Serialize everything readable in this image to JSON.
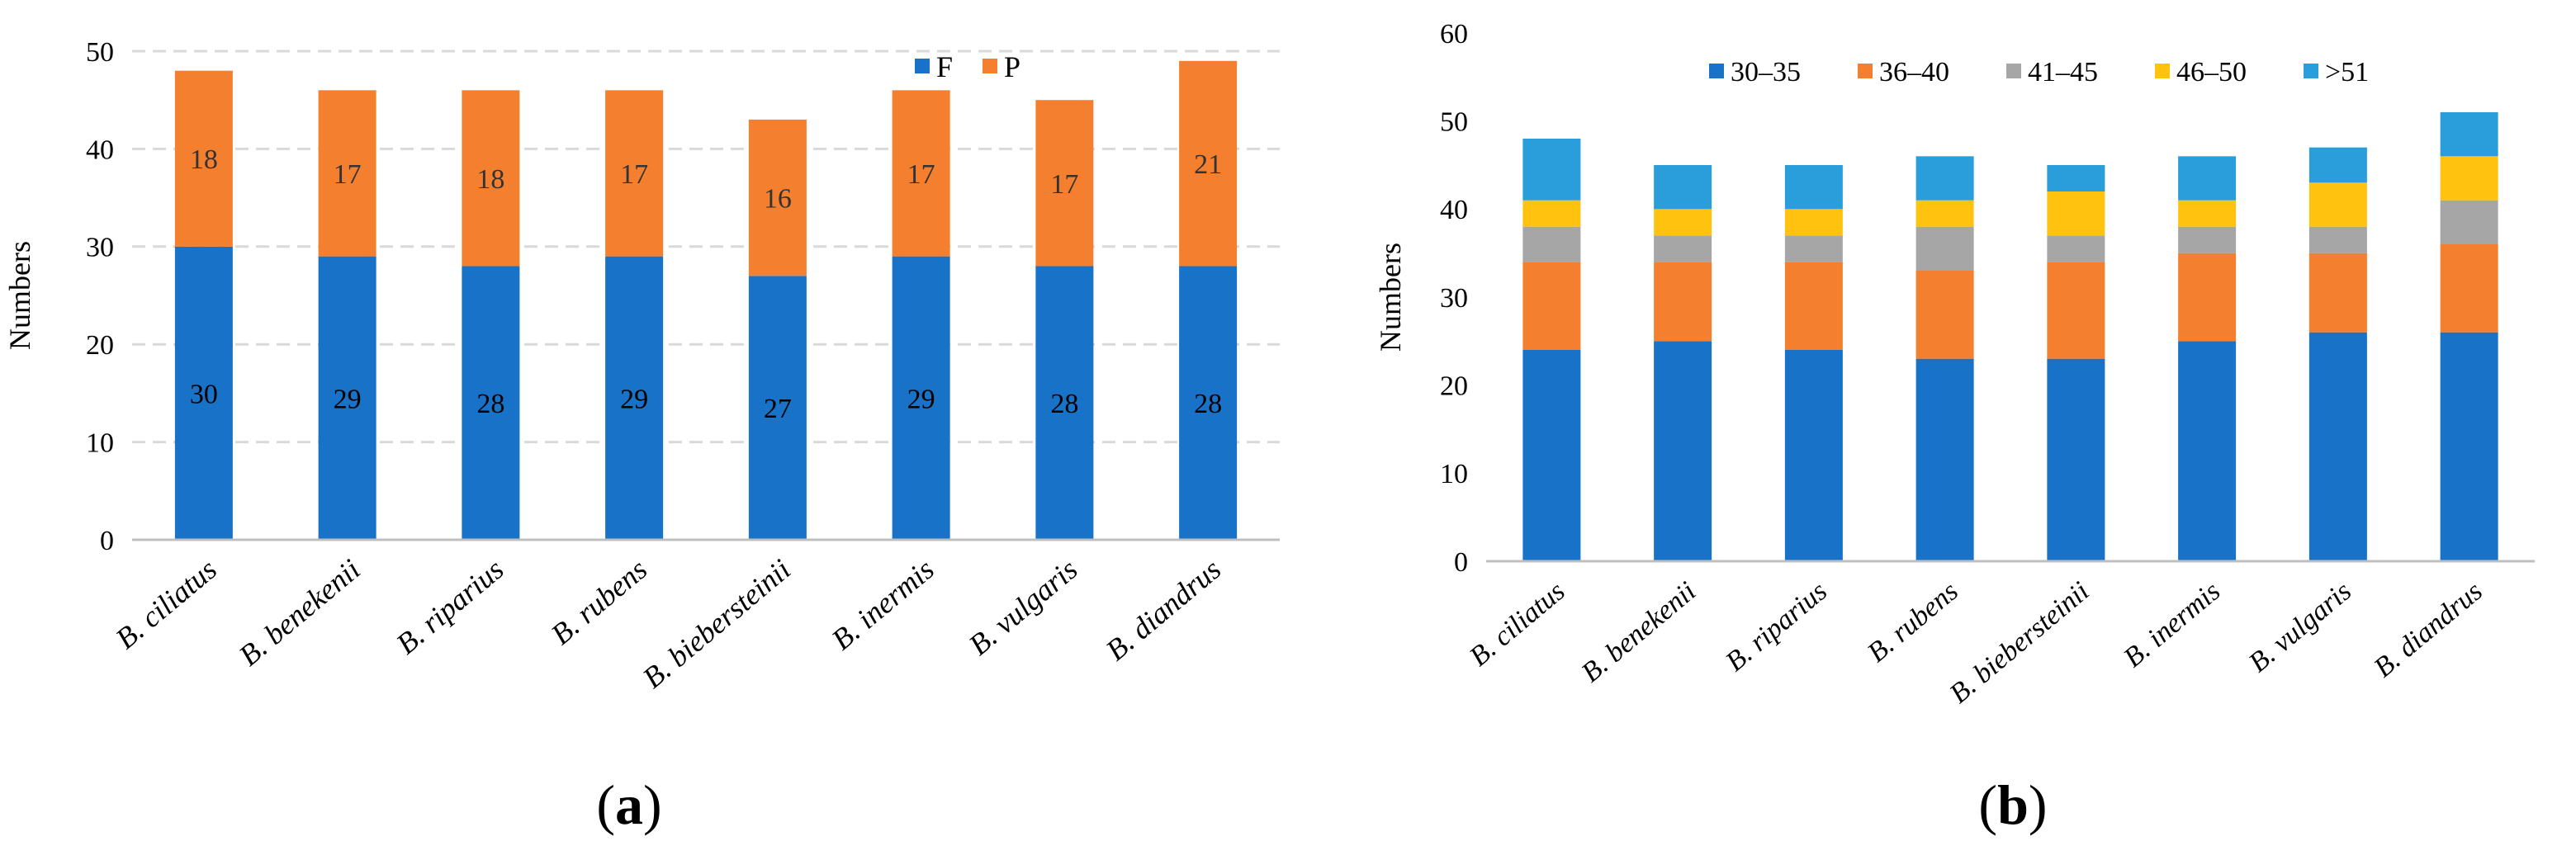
{
  "colors": {
    "F": "#1872c8",
    "P": "#f47f2e",
    "30–35": "#1872c8",
    "36–40": "#f47f2e",
    "41–45": "#a6a6a6",
    "46–50": "#ffc20e",
    ">51": "#2a9ddb",
    "axis": "#bfbfbf",
    "grid": "#d9d9d9",
    "text": "#000000"
  },
  "chart_data": [
    {
      "panel_label": "(a)",
      "type": "bar",
      "stacked": true,
      "ylabel": "Numbers",
      "xlabel": "",
      "ylim": [
        0,
        50
      ],
      "yticks": [
        0,
        10,
        20,
        30,
        40,
        50
      ],
      "grid": true,
      "legend_position": "top-right",
      "data_labels": true,
      "categories": [
        "B. ciliatus",
        "B. benekenii",
        "B. riparius",
        "B. rubens",
        "B. biebersteinii",
        "B. inermis",
        "B. vulgaris",
        "B. diandrus"
      ],
      "series": [
        {
          "name": "F",
          "values": [
            30,
            29,
            28,
            29,
            27,
            29,
            28,
            28
          ]
        },
        {
          "name": "P",
          "values": [
            18,
            17,
            18,
            17,
            16,
            17,
            17,
            21
          ]
        }
      ]
    },
    {
      "panel_label": "(b)",
      "type": "bar",
      "stacked": true,
      "ylabel": "Numbers",
      "xlabel": "",
      "ylim": [
        0,
        60
      ],
      "yticks": [
        0,
        10,
        20,
        30,
        40,
        50,
        60
      ],
      "grid": false,
      "legend_position": "top",
      "data_labels": false,
      "categories": [
        "B. ciliatus",
        "B. benekenii",
        "B. riparius",
        "B. rubens",
        "B. biebersteinii",
        "B. inermis",
        "B. vulgaris",
        "B. diandrus"
      ],
      "series": [
        {
          "name": "30–35",
          "values": [
            24,
            25,
            24,
            23,
            23,
            25,
            26,
            26
          ]
        },
        {
          "name": "36–40",
          "values": [
            10,
            9,
            10,
            10,
            11,
            10,
            9,
            10
          ]
        },
        {
          "name": "41–45",
          "values": [
            4,
            3,
            3,
            5,
            3,
            3,
            3,
            5
          ]
        },
        {
          "name": "46–50",
          "values": [
            3,
            3,
            3,
            3,
            5,
            3,
            5,
            5
          ]
        },
        {
          "name": ">51",
          "values": [
            7,
            5,
            5,
            5,
            3,
            5,
            4,
            5
          ]
        }
      ]
    }
  ]
}
